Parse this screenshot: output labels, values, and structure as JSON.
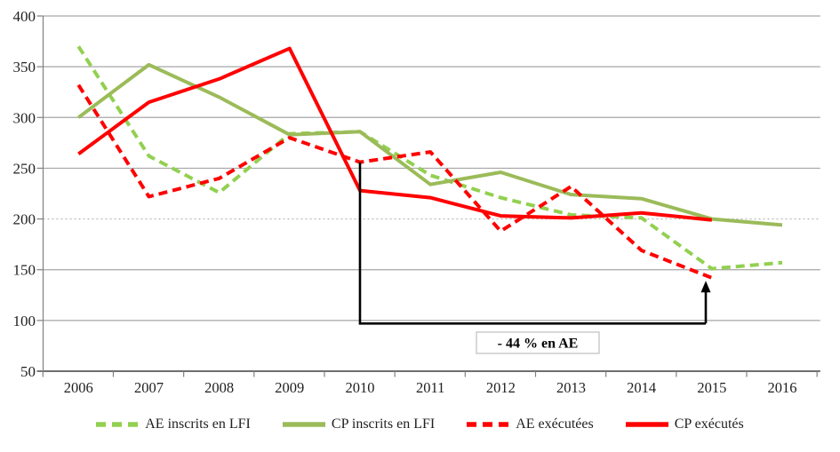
{
  "chart_data": {
    "type": "line",
    "title": "",
    "x": [
      2006,
      2007,
      2008,
      2009,
      2010,
      2011,
      2012,
      2013,
      2014,
      2015,
      2016
    ],
    "ylim": [
      50,
      400
    ],
    "yticks": [
      400,
      350,
      300,
      250,
      200,
      150,
      100,
      50
    ],
    "grid": true,
    "legend_position": "bottom",
    "series": [
      {
        "name": "AE inscrits en LFI",
        "style": "dashed",
        "color": "#92D050",
        "values": [
          370,
          262,
          226,
          284,
          286,
          243,
          221,
          204,
          201,
          151,
          157
        ]
      },
      {
        "name": "CP inscrits en LFI",
        "style": "solid",
        "color": "#9BBB59",
        "values": [
          300,
          352,
          320,
          283,
          286,
          234,
          246,
          224,
          220,
          200,
          194
        ]
      },
      {
        "name": "AE exécutées",
        "style": "dashed",
        "color": "#FF0000",
        "values": [
          332,
          222,
          240,
          280,
          256,
          266,
          188,
          232,
          169,
          142,
          null
        ]
      },
      {
        "name": "CP exécutés",
        "style": "solid",
        "color": "#FF0000",
        "values": [
          264,
          315,
          338,
          368,
          228,
          221,
          203,
          201,
          206,
          199,
          null
        ]
      }
    ],
    "annotation": {
      "label": "- 44 % en AE",
      "from_year": 2010,
      "to_year": 2015,
      "start_value": 256,
      "bracket_value": 97,
      "arrow_tip_value": 139
    },
    "colors": {
      "grid": "#A6A6A6",
      "grid_dotted": "#B3B3B3",
      "axis": "#808080",
      "annotation": "#000000",
      "text": "#1f1f1f"
    }
  }
}
